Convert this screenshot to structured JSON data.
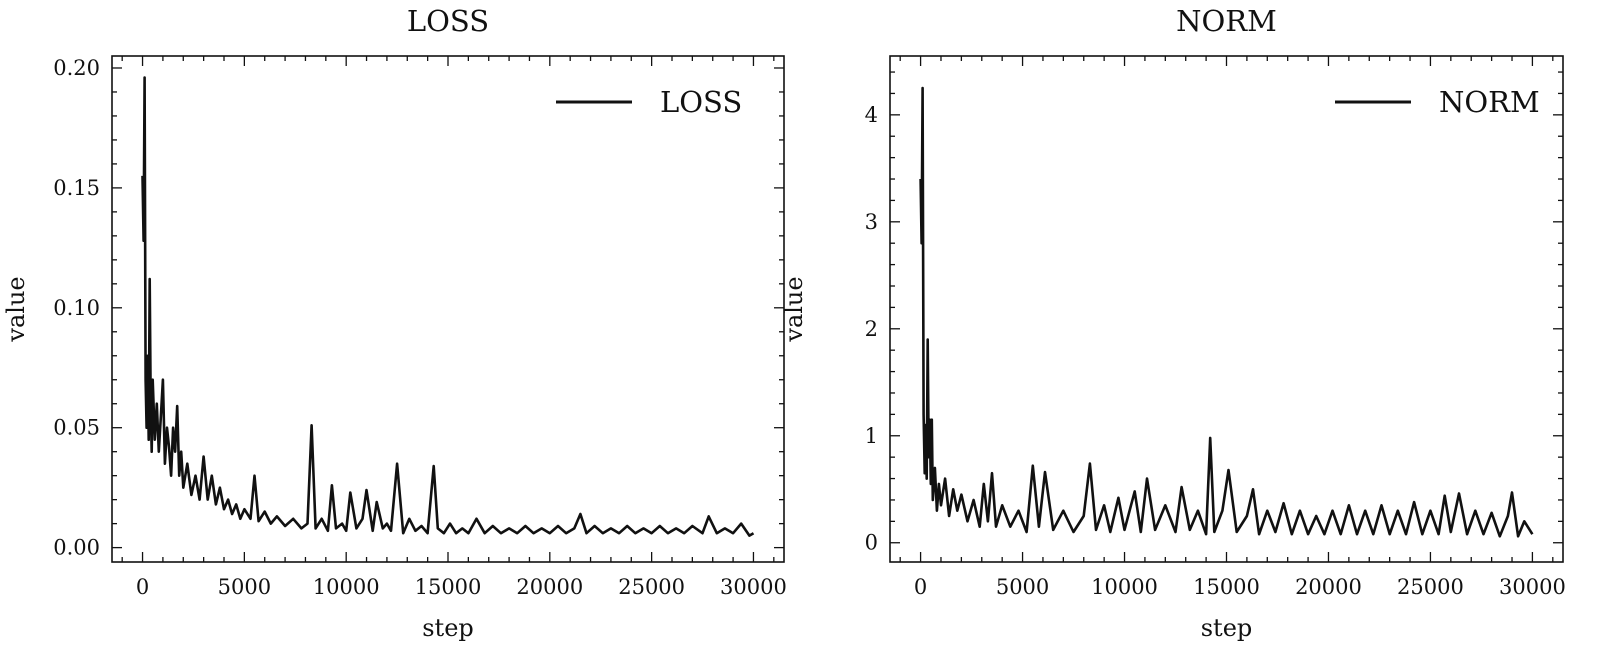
{
  "chart_data": [
    {
      "type": "line",
      "title": "LOSS",
      "xlabel": "step",
      "ylabel": "value",
      "xlim": [
        -1500,
        31500
      ],
      "ylim": [
        -0.006,
        0.205
      ],
      "xticks": [
        0,
        5000,
        10000,
        15000,
        20000,
        25000,
        30000
      ],
      "xtick_labels": [
        "0",
        "5000",
        "10000",
        "15000",
        "20000",
        "25000",
        "30000"
      ],
      "yticks": [
        0.0,
        0.05,
        0.1,
        0.15,
        0.2
      ],
      "ytick_labels": [
        "0.00",
        "0.05",
        "0.10",
        "0.15",
        "0.20"
      ],
      "legend_position": "top-right",
      "grid": false,
      "color": "#111111",
      "series": [
        {
          "name": "LOSS",
          "x": [
            0,
            50,
            100,
            150,
            200,
            250,
            300,
            350,
            400,
            450,
            500,
            600,
            700,
            800,
            900,
            1000,
            1100,
            1200,
            1300,
            1400,
            1500,
            1600,
            1700,
            1800,
            1900,
            2000,
            2200,
            2400,
            2600,
            2800,
            3000,
            3200,
            3400,
            3600,
            3800,
            4000,
            4200,
            4400,
            4600,
            4800,
            5000,
            5300,
            5500,
            5700,
            6000,
            6300,
            6600,
            7000,
            7400,
            7800,
            8100,
            8300,
            8500,
            8800,
            9100,
            9300,
            9500,
            9800,
            10000,
            10200,
            10500,
            10800,
            11000,
            11300,
            11500,
            11800,
            12000,
            12200,
            12500,
            12800,
            13100,
            13400,
            13700,
            14000,
            14300,
            14500,
            14800,
            15100,
            15400,
            15700,
            16000,
            16400,
            16800,
            17200,
            17600,
            18000,
            18400,
            18800,
            19200,
            19600,
            20000,
            20400,
            20800,
            21200,
            21500,
            21800,
            22200,
            22600,
            23000,
            23400,
            23800,
            24200,
            24600,
            25000,
            25400,
            25800,
            26200,
            26600,
            27000,
            27500,
            27800,
            28200,
            28600,
            29000,
            29400,
            29800,
            30000
          ],
          "y": [
            0.155,
            0.128,
            0.196,
            0.07,
            0.05,
            0.08,
            0.045,
            0.112,
            0.06,
            0.04,
            0.07,
            0.045,
            0.06,
            0.04,
            0.055,
            0.07,
            0.035,
            0.05,
            0.042,
            0.03,
            0.05,
            0.04,
            0.059,
            0.03,
            0.04,
            0.025,
            0.035,
            0.022,
            0.03,
            0.02,
            0.038,
            0.02,
            0.03,
            0.018,
            0.025,
            0.016,
            0.02,
            0.014,
            0.018,
            0.012,
            0.016,
            0.012,
            0.03,
            0.011,
            0.015,
            0.01,
            0.013,
            0.009,
            0.012,
            0.008,
            0.01,
            0.051,
            0.008,
            0.012,
            0.007,
            0.026,
            0.008,
            0.01,
            0.007,
            0.023,
            0.008,
            0.012,
            0.024,
            0.007,
            0.019,
            0.008,
            0.01,
            0.007,
            0.035,
            0.006,
            0.012,
            0.007,
            0.009,
            0.006,
            0.034,
            0.008,
            0.006,
            0.01,
            0.006,
            0.008,
            0.006,
            0.012,
            0.006,
            0.009,
            0.006,
            0.008,
            0.006,
            0.009,
            0.006,
            0.008,
            0.006,
            0.009,
            0.006,
            0.008,
            0.014,
            0.006,
            0.009,
            0.006,
            0.008,
            0.006,
            0.009,
            0.006,
            0.008,
            0.006,
            0.009,
            0.006,
            0.008,
            0.006,
            0.009,
            0.006,
            0.013,
            0.006,
            0.008,
            0.006,
            0.01,
            0.005,
            0.006
          ]
        }
      ]
    },
    {
      "type": "line",
      "title": "NORM",
      "xlabel": "step",
      "ylabel": "value",
      "xlim": [
        -1500,
        31500
      ],
      "ylim": [
        -0.18,
        4.55
      ],
      "xticks": [
        0,
        5000,
        10000,
        15000,
        20000,
        25000,
        30000
      ],
      "xtick_labels": [
        "0",
        "5000",
        "10000",
        "15000",
        "20000",
        "25000",
        "30000"
      ],
      "yticks": [
        0,
        1,
        2,
        3,
        4
      ],
      "ytick_labels": [
        "0",
        "1",
        "2",
        "3",
        "4"
      ],
      "legend_position": "top-right",
      "grid": false,
      "color": "#111111",
      "series": [
        {
          "name": "NORM",
          "x": [
            0,
            50,
            100,
            150,
            200,
            250,
            300,
            350,
            400,
            450,
            500,
            550,
            600,
            700,
            800,
            900,
            1000,
            1200,
            1400,
            1600,
            1800,
            2000,
            2300,
            2600,
            2900,
            3100,
            3300,
            3500,
            3700,
            4000,
            4400,
            4800,
            5200,
            5500,
            5800,
            6100,
            6500,
            7000,
            7500,
            8000,
            8300,
            8600,
            9000,
            9300,
            9700,
            10000,
            10500,
            10800,
            11100,
            11500,
            12000,
            12500,
            12800,
            13200,
            13600,
            14000,
            14200,
            14400,
            14800,
            15100,
            15500,
            16000,
            16300,
            16600,
            17000,
            17400,
            17800,
            18200,
            18600,
            19000,
            19400,
            19800,
            20200,
            20600,
            21000,
            21400,
            21800,
            22200,
            22600,
            23000,
            23400,
            23800,
            24200,
            24600,
            25000,
            25400,
            25700,
            26000,
            26400,
            26800,
            27200,
            27600,
            28000,
            28400,
            28800,
            29000,
            29300,
            29600,
            30000
          ],
          "y": [
            3.4,
            2.8,
            4.25,
            1.2,
            0.65,
            1.1,
            0.6,
            1.9,
            0.8,
            1.15,
            0.55,
            1.15,
            0.4,
            0.7,
            0.3,
            0.55,
            0.35,
            0.6,
            0.25,
            0.5,
            0.3,
            0.45,
            0.2,
            0.4,
            0.15,
            0.55,
            0.2,
            0.65,
            0.15,
            0.35,
            0.15,
            0.3,
            0.1,
            0.72,
            0.15,
            0.66,
            0.12,
            0.3,
            0.1,
            0.25,
            0.74,
            0.12,
            0.35,
            0.1,
            0.42,
            0.12,
            0.48,
            0.1,
            0.6,
            0.12,
            0.35,
            0.1,
            0.52,
            0.12,
            0.3,
            0.08,
            0.98,
            0.1,
            0.3,
            0.68,
            0.1,
            0.25,
            0.5,
            0.08,
            0.3,
            0.1,
            0.37,
            0.08,
            0.3,
            0.08,
            0.25,
            0.08,
            0.3,
            0.08,
            0.35,
            0.08,
            0.3,
            0.08,
            0.35,
            0.08,
            0.3,
            0.08,
            0.38,
            0.08,
            0.3,
            0.08,
            0.44,
            0.1,
            0.46,
            0.08,
            0.3,
            0.08,
            0.28,
            0.06,
            0.25,
            0.47,
            0.06,
            0.2,
            0.08
          ]
        }
      ]
    }
  ]
}
